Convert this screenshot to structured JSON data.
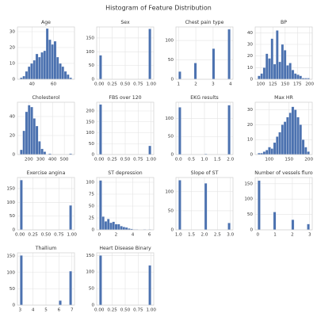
{
  "title": "Histogram of Feature Distribution",
  "color": "#4c72b0",
  "grid": true,
  "chart_data": [
    {
      "type": "histogram",
      "title": "Age",
      "bins": [
        29,
        31.4,
        33.8,
        36.2,
        38.6,
        41,
        43.4,
        45.8,
        48.2,
        50.6,
        53,
        55.4,
        57.8,
        60.2,
        62.6,
        65,
        67.4,
        69.8,
        72.2,
        74.6,
        77
      ],
      "values": [
        1,
        2,
        5,
        8,
        10,
        12,
        16,
        14,
        17,
        18,
        32,
        25,
        22,
        24,
        14,
        10,
        8,
        5,
        3,
        1
      ],
      "xlim": [
        26.6,
        79.4
      ],
      "xticks": [
        40,
        60
      ],
      "ylim": [
        0,
        33
      ],
      "yticks": [
        0,
        10,
        20,
        30
      ]
    },
    {
      "type": "histogram",
      "title": "Sex",
      "bins": [
        0,
        0.05,
        0.1,
        0.15,
        0.2,
        0.25,
        0.3,
        0.35,
        0.4,
        0.45,
        0.5,
        0.55,
        0.6,
        0.65,
        0.7,
        0.75,
        0.8,
        0.85,
        0.9,
        0.95,
        1
      ],
      "values": [
        87,
        0,
        0,
        0,
        0,
        0,
        0,
        0,
        0,
        0,
        0,
        0,
        0,
        0,
        0,
        0,
        0,
        0,
        0,
        183
      ],
      "xlim": [
        -0.05,
        1.05
      ],
      "xticks": [
        {
          "value": 0,
          "label": "0.00"
        },
        {
          "value": 0.25,
          "label": "0.25"
        },
        {
          "value": 0.5,
          "label": "0.50"
        },
        {
          "value": 0.75,
          "label": "0.75"
        },
        {
          "value": 1,
          "label": "1.00"
        }
      ],
      "ylim": [
        0,
        190
      ],
      "yticks": [
        0,
        50,
        100,
        150
      ]
    },
    {
      "type": "histogram",
      "title": "Chest pain type",
      "bins": [
        1,
        1.15,
        1.3,
        1.45,
        1.6,
        1.75,
        1.9,
        2.05,
        2.2,
        2.35,
        2.5,
        2.65,
        2.8,
        2.95,
        3.1,
        3.25,
        3.4,
        3.55,
        3.7,
        3.85,
        4
      ],
      "values": [
        20,
        0,
        0,
        0,
        0,
        0,
        42,
        0,
        0,
        0,
        0,
        0,
        0,
        79,
        0,
        0,
        0,
        0,
        0,
        129
      ],
      "xlim": [
        0.85,
        4.15
      ],
      "xticks": [
        1,
        2,
        3,
        4
      ],
      "ylim": [
        0,
        135
      ],
      "yticks": [
        0,
        50,
        100
      ]
    },
    {
      "type": "histogram",
      "title": "BP",
      "bins": [
        94,
        99.3,
        104.6,
        109.9,
        115.2,
        120.5,
        125.8,
        131.1,
        136.4,
        141.7,
        147,
        152.3,
        157.6,
        162.9,
        168.2,
        173.5,
        178.8,
        184.1,
        189.4,
        194.7,
        200
      ],
      "values": [
        3,
        5,
        10,
        22,
        18,
        35,
        13,
        42,
        15,
        30,
        25,
        12,
        14,
        8,
        5,
        4,
        3,
        1,
        1,
        1
      ],
      "xlim": [
        88.7,
        205.3
      ],
      "xticks": [
        100,
        125,
        150,
        175,
        200
      ],
      "ylim": [
        0,
        45
      ],
      "yticks": [
        0,
        10,
        20,
        30,
        40
      ]
    },
    {
      "type": "histogram",
      "title": "Cholesterol",
      "bins": [
        126,
        147.9,
        169.8,
        191.7,
        213.6,
        235.5,
        257.4,
        279.3,
        301.2,
        323.1,
        345,
        366.9,
        388.8,
        410.7,
        432.6,
        454.5,
        476.4,
        498.3,
        520.2,
        542.1,
        564
      ],
      "values": [
        5,
        25,
        45,
        52,
        50,
        38,
        30,
        14,
        6,
        3,
        0,
        1,
        0,
        0,
        0,
        0,
        0,
        0,
        0,
        1
      ],
      "xlim": [
        104,
        586
      ],
      "xticks": [
        200,
        300,
        400,
        500
      ],
      "ylim": [
        0,
        55
      ],
      "yticks": [
        0,
        20,
        40
      ]
    },
    {
      "type": "histogram",
      "title": "FBS over 120",
      "bins": [
        0,
        0.05,
        0.1,
        0.15,
        0.2,
        0.25,
        0.3,
        0.35,
        0.4,
        0.45,
        0.5,
        0.55,
        0.6,
        0.65,
        0.7,
        0.75,
        0.8,
        0.85,
        0.9,
        0.95,
        1
      ],
      "values": [
        230,
        0,
        0,
        0,
        0,
        0,
        0,
        0,
        0,
        0,
        0,
        0,
        0,
        0,
        0,
        0,
        0,
        0,
        0,
        40
      ],
      "xlim": [
        -0.05,
        1.05
      ],
      "xticks": [
        {
          "value": 0,
          "label": "0.00"
        },
        {
          "value": 0.25,
          "label": "0.25"
        },
        {
          "value": 0.5,
          "label": "0.50"
        },
        {
          "value": 0.75,
          "label": "0.75"
        },
        {
          "value": 1,
          "label": "1.00"
        }
      ],
      "ylim": [
        0,
        240
      ],
      "yticks": [
        0,
        50,
        100,
        150,
        200
      ]
    },
    {
      "type": "histogram",
      "title": "EKG results",
      "bins": [
        0,
        0.1,
        0.2,
        0.3,
        0.4,
        0.5,
        0.6,
        0.7,
        0.8,
        0.9,
        1,
        1.1,
        1.2,
        1.3,
        1.4,
        1.5,
        1.6,
        1.7,
        1.8,
        1.9,
        2
      ],
      "values": [
        131,
        0,
        0,
        0,
        0,
        0,
        0,
        0,
        0,
        0,
        2,
        0,
        0,
        0,
        0,
        0,
        0,
        0,
        0,
        137
      ],
      "xlim": [
        -0.1,
        2.1
      ],
      "xticks": [
        {
          "value": 0,
          "label": "0.0"
        },
        {
          "value": 0.5,
          "label": "0.5"
        },
        {
          "value": 1,
          "label": "1.0"
        },
        {
          "value": 1.5,
          "label": "1.5"
        },
        {
          "value": 2,
          "label": "2.0"
        }
      ],
      "ylim": [
        0,
        145
      ],
      "yticks": [
        0,
        50,
        100
      ]
    },
    {
      "type": "histogram",
      "title": "Max HR",
      "bins": [
        71,
        77.55,
        84.1,
        90.65,
        97.2,
        103.75,
        110.3,
        116.85,
        123.4,
        129.95,
        136.5,
        143.05,
        149.6,
        156.15,
        162.7,
        169.25,
        175.8,
        182.35,
        188.9,
        195.45,
        202
      ],
      "values": [
        1,
        1,
        2,
        3,
        5,
        4,
        8,
        12,
        15,
        20,
        22,
        25,
        28,
        32,
        30,
        25,
        20,
        10,
        5,
        2
      ],
      "xlim": [
        64.45,
        208.55
      ],
      "xticks": [
        100,
        150,
        200
      ],
      "ylim": [
        0,
        35
      ],
      "yticks": [
        0,
        10,
        20,
        30
      ]
    },
    {
      "type": "histogram",
      "title": "Exercise angina",
      "bins": [
        0,
        0.05,
        0.1,
        0.15,
        0.2,
        0.25,
        0.3,
        0.35,
        0.4,
        0.45,
        0.5,
        0.55,
        0.6,
        0.65,
        0.7,
        0.75,
        0.8,
        0.85,
        0.9,
        0.95,
        1
      ],
      "values": [
        181,
        0,
        0,
        0,
        0,
        0,
        0,
        0,
        0,
        0,
        0,
        0,
        0,
        0,
        0,
        0,
        0,
        0,
        0,
        89
      ],
      "xlim": [
        -0.05,
        1.05
      ],
      "xticks": [
        {
          "value": 0,
          "label": "0.00"
        },
        {
          "value": 0.25,
          "label": "0.25"
        },
        {
          "value": 0.5,
          "label": "0.50"
        },
        {
          "value": 0.75,
          "label": "0.75"
        },
        {
          "value": 1,
          "label": "1.00"
        }
      ],
      "ylim": [
        0,
        190
      ],
      "yticks": [
        0,
        50,
        100,
        150
      ]
    },
    {
      "type": "histogram",
      "title": "ST depression",
      "bins": [
        0,
        0.31,
        0.62,
        0.93,
        1.24,
        1.55,
        1.86,
        2.17,
        2.48,
        2.79,
        3.1,
        3.41,
        3.72,
        4.03,
        4.34,
        4.65,
        4.96,
        5.27,
        5.58,
        5.89,
        6.2
      ],
      "values": [
        104,
        28,
        18,
        23,
        15,
        17,
        12,
        12,
        8,
        6,
        5,
        3,
        2,
        1,
        1,
        0,
        0,
        1,
        0,
        1
      ],
      "xlim": [
        -0.31,
        6.51
      ],
      "xticks": [
        0,
        2,
        4,
        6
      ],
      "ylim": [
        0,
        110
      ],
      "yticks": [
        0,
        25,
        50,
        75,
        100
      ]
    },
    {
      "type": "histogram",
      "title": "Slope of ST",
      "bins": [
        1,
        1.1,
        1.2,
        1.3,
        1.4,
        1.5,
        1.6,
        1.7,
        1.8,
        1.9,
        2,
        2.1,
        2.2,
        2.3,
        2.4,
        2.5,
        2.6,
        2.7,
        2.8,
        2.9,
        3
      ],
      "values": [
        130,
        0,
        0,
        0,
        0,
        0,
        0,
        0,
        0,
        0,
        122,
        0,
        0,
        0,
        0,
        0,
        0,
        0,
        0,
        18
      ],
      "xlim": [
        0.9,
        3.1
      ],
      "xticks": [
        {
          "value": 1,
          "label": "1.0"
        },
        {
          "value": 1.5,
          "label": "1.5"
        },
        {
          "value": 2,
          "label": "2.0"
        },
        {
          "value": 2.5,
          "label": "2.5"
        },
        {
          "value": 3,
          "label": "3.0"
        }
      ],
      "ylim": [
        0,
        137
      ],
      "yticks": [
        0,
        50,
        100
      ]
    },
    {
      "type": "histogram",
      "title": "Number of vessels fluro",
      "bins": [
        0,
        0.15,
        0.3,
        0.45,
        0.6,
        0.75,
        0.9,
        1.05,
        1.2,
        1.35,
        1.5,
        1.65,
        1.8,
        1.95,
        2.1,
        2.25,
        2.4,
        2.55,
        2.7,
        2.85,
        3
      ],
      "values": [
        160,
        0,
        0,
        0,
        0,
        0,
        58,
        0,
        0,
        0,
        0,
        0,
        0,
        33,
        0,
        0,
        0,
        0,
        0,
        19
      ],
      "xlim": [
        -0.15,
        3.15
      ],
      "xticks": [
        0,
        1,
        2,
        3
      ],
      "ylim": [
        0,
        170
      ],
      "yticks": [
        0,
        50,
        100,
        150
      ]
    },
    {
      "type": "histogram",
      "title": "Thallium",
      "bins": [
        3,
        3.2,
        3.4,
        3.6,
        3.8,
        4,
        4.2,
        4.4,
        4.6,
        4.8,
        5,
        5.2,
        5.4,
        5.6,
        5.8,
        6,
        6.2,
        6.4,
        6.6,
        6.8,
        7
      ],
      "values": [
        152,
        0,
        0,
        0,
        0,
        0,
        0,
        0,
        0,
        0,
        0,
        0,
        0,
        0,
        0,
        14,
        0,
        0,
        0,
        104
      ],
      "xlim": [
        2.8,
        7.2
      ],
      "xticks": [
        3,
        4,
        5,
        6,
        7
      ],
      "ylim": [
        0,
        160
      ],
      "yticks": [
        0,
        50,
        100,
        150
      ]
    },
    {
      "type": "histogram",
      "title": "Heart Disease Binary",
      "bins": [
        0,
        0.05,
        0.1,
        0.15,
        0.2,
        0.25,
        0.3,
        0.35,
        0.4,
        0.45,
        0.5,
        0.55,
        0.6,
        0.65,
        0.7,
        0.75,
        0.8,
        0.85,
        0.9,
        0.95,
        1
      ],
      "values": [
        150,
        0,
        0,
        0,
        0,
        0,
        0,
        0,
        0,
        0,
        0,
        0,
        0,
        0,
        0,
        0,
        0,
        0,
        0,
        120
      ],
      "xlim": [
        -0.05,
        1.05
      ],
      "xticks": [
        {
          "value": 0,
          "label": "0.00"
        },
        {
          "value": 0.25,
          "label": "0.25"
        },
        {
          "value": 0.5,
          "label": "0.50"
        },
        {
          "value": 0.75,
          "label": "0.75"
        },
        {
          "value": 1,
          "label": "1.00"
        }
      ],
      "ylim": [
        0,
        158
      ],
      "yticks": [
        0,
        50,
        100,
        150
      ]
    }
  ]
}
